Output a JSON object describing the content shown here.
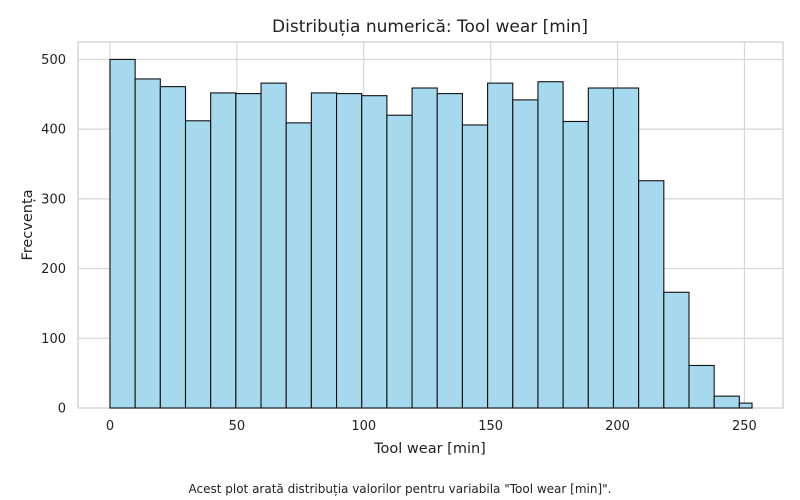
{
  "chart_data": {
    "type": "bar",
    "title": "Distribuția numerică: Tool wear [min]",
    "xlabel": "Tool wear [min]",
    "ylabel": "Frecvența",
    "xlim": [
      -12.6,
      265.2
    ],
    "ylim": [
      0,
      525
    ],
    "xticks": [
      0,
      50,
      100,
      150,
      200,
      250
    ],
    "yticks": [
      0,
      100,
      200,
      300,
      400,
      500
    ],
    "grid": true,
    "bin_edges": [
      0,
      9.92,
      19.84,
      29.76,
      39.68,
      49.6,
      59.52,
      69.44,
      79.36,
      89.28,
      99.2,
      109.12,
      119.04,
      128.96,
      138.88,
      148.8,
      158.72,
      168.64,
      178.56,
      188.48,
      198.4,
      208.32,
      218.24,
      228.16,
      238.08,
      248.0,
      253.0
    ],
    "values": [
      500,
      472,
      461,
      412,
      452,
      451,
      466,
      409,
      452,
      451,
      448,
      420,
      459,
      451,
      406,
      466,
      442,
      468,
      411,
      459,
      459,
      326,
      166,
      61,
      17,
      7
    ],
    "bar_color": "#a6d8ee",
    "edge_color": "#111111",
    "grid_color": "#d6d6d6"
  },
  "caption": "Acest plot arată distribuția valorilor pentru variabila \"Tool wear [min]\"."
}
